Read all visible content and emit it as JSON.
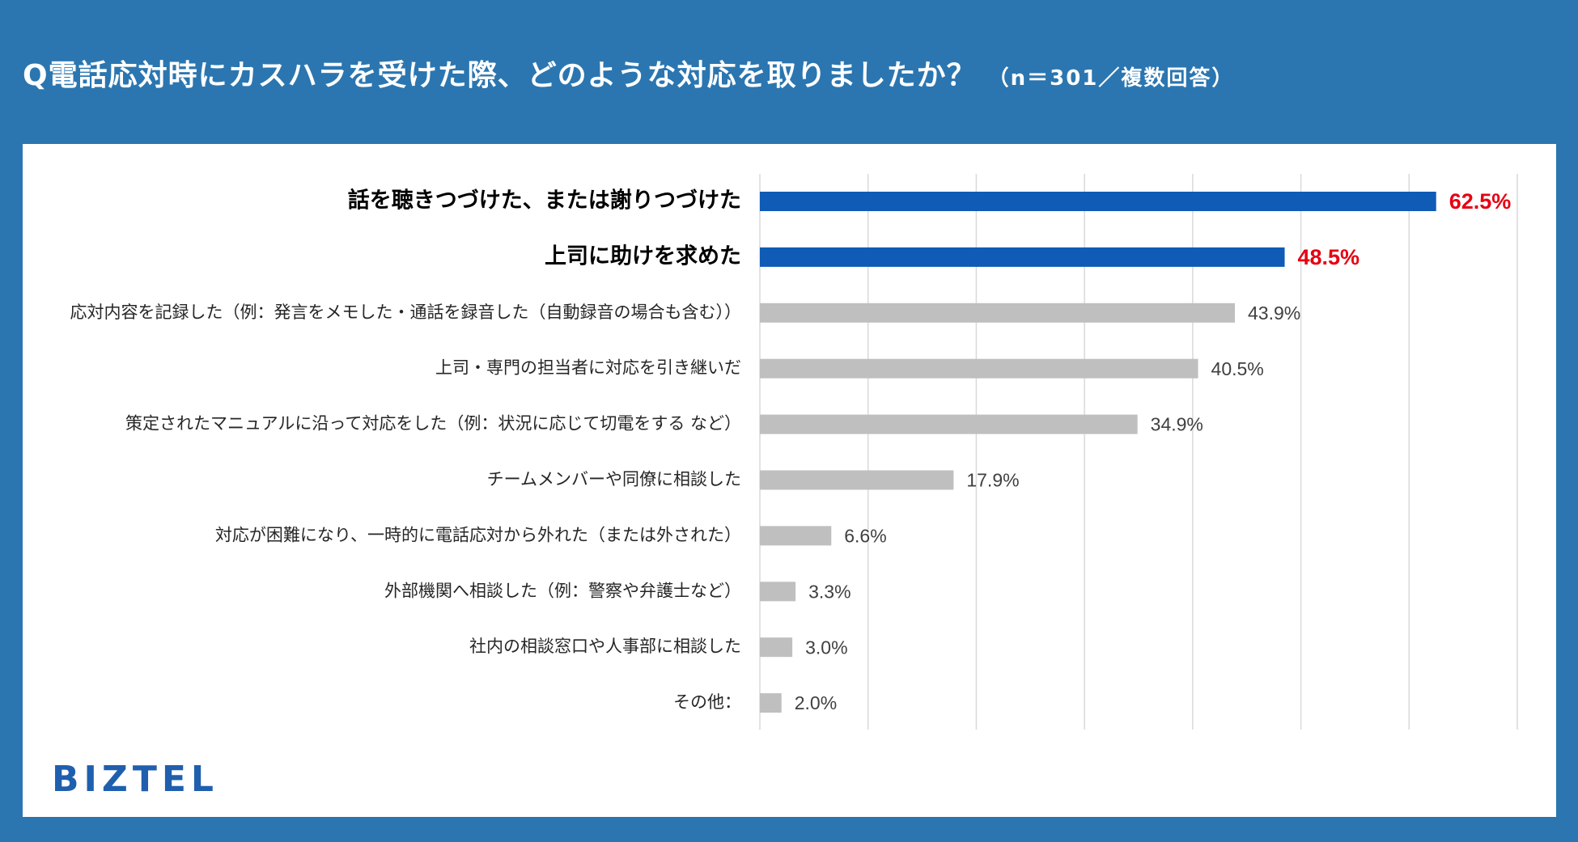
{
  "title": {
    "main": "Q電話応対時にカスハラを受けた際、どのような対応を取りましたか？",
    "sub": "（n＝301／複数回答）"
  },
  "brand": "BIZTEL",
  "colors": {
    "frame": "#2b76b0",
    "highlight_bar": "#0f5bb5",
    "normal_bar": "#bfbfbf",
    "highlight_label": "#e60012",
    "normal_label": "#404040",
    "grid": "#d9d9d9"
  },
  "chart_data": {
    "type": "bar",
    "orientation": "horizontal",
    "title": "Q電話応対時にカスハラを受けた際、どのような対応を取りましたか？",
    "unit": "%",
    "xlim": [
      0,
      70
    ],
    "grid": true,
    "categories": [
      "話を聴きつづけた、または謝りつづけた",
      "上司に助けを求めた",
      "応対内容を記録した（例：発言をメモした・通話を録音した（自動録音の場合も含む））",
      "上司・専門の担当者に対応を引き継いだ",
      "策定されたマニュアルに沿って対応をした（例：状況に応じて切電をする など）",
      "チームメンバーや同僚に相談した",
      "対応が困難になり、一時的に電話応対から外れた（または外された）",
      "外部機関へ相談した（例：警察や弁護士など）",
      "社内の相談窓口や人事部に相談した",
      "その他："
    ],
    "values": [
      62.5,
      48.5,
      43.9,
      40.5,
      34.9,
      17.9,
      6.6,
      3.3,
      3.0,
      2.0
    ],
    "value_labels": [
      "62.5%",
      "48.5%",
      "43.9%",
      "40.5%",
      "34.9%",
      "17.9%",
      "6.6%",
      "3.3%",
      "3.0%",
      "2.0%"
    ],
    "highlighted": [
      true,
      true,
      false,
      false,
      false,
      false,
      false,
      false,
      false,
      false
    ]
  }
}
